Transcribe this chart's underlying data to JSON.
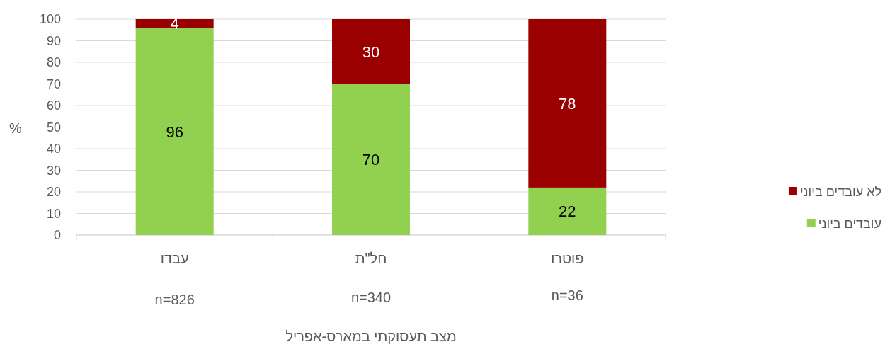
{
  "chart_data": {
    "type": "bar",
    "stacked": true,
    "categories": [
      "עבדו",
      "חל\"ת",
      "פוטרו"
    ],
    "series": [
      {
        "name": "עובדים ביוני",
        "color": "#92d050",
        "values": [
          96,
          70,
          22
        ]
      },
      {
        "name": "לא עובדים ביוני",
        "color": "#9b0000",
        "values": [
          4,
          30,
          78
        ]
      }
    ],
    "ylabel": "%",
    "xlabel": "מצב תעסוקתי במארס-אפריל",
    "ylim": [
      0,
      100
    ],
    "yticks": [
      0,
      10,
      20,
      30,
      40,
      50,
      60,
      70,
      80,
      90,
      100
    ],
    "grid": "y",
    "legend": "right",
    "data_labels": true,
    "annotations": [
      "n=826",
      "n=340",
      "n=36"
    ]
  }
}
